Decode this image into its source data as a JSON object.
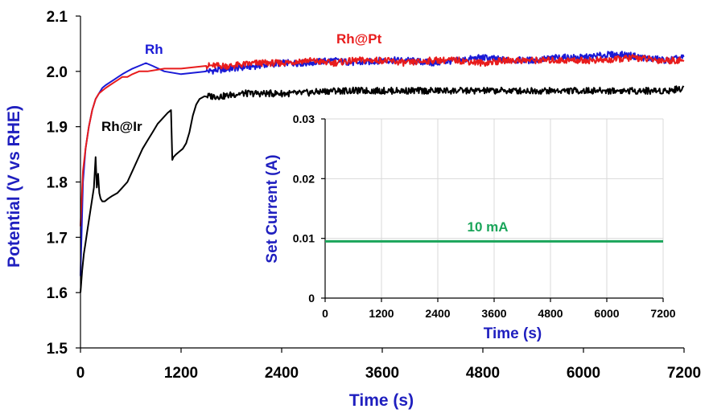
{
  "chart_data": [
    {
      "type": "line",
      "title": "",
      "xlabel": "Time (s)",
      "ylabel": "Potential (V vs RHE)",
      "xlim": [
        0,
        7200
      ],
      "ylim": [
        1.5,
        2.1
      ],
      "xticks": [
        "0",
        "1200",
        "2400",
        "3600",
        "4800",
        "6000",
        "7200"
      ],
      "yticks": [
        "1.5",
        "1.6",
        "1.7",
        "1.8",
        "1.9",
        "2.0",
        "2.1"
      ],
      "grid": false,
      "colors": {
        "axis_labels": "#1f1fbf",
        "Rh": "#1a1ad6",
        "Rh@Pt": "#e81c1c",
        "Rh@Ir": "#000000"
      },
      "series": [
        {
          "name": "Rh",
          "x": [
            0,
            30,
            60,
            100,
            140,
            180,
            220,
            260,
            300,
            350,
            400,
            450,
            500,
            560,
            620,
            700,
            780,
            860,
            1000,
            1200,
            1500,
            1800,
            2100,
            2400,
            2700,
            3000,
            3300,
            3600,
            3900,
            4200,
            4500,
            4800,
            5100,
            5400,
            5700,
            6000,
            6300,
            6500,
            6700,
            7000,
            7200
          ],
          "y": [
            1.63,
            1.8,
            1.86,
            1.9,
            1.93,
            1.95,
            1.96,
            1.97,
            1.975,
            1.98,
            1.985,
            1.99,
            1.995,
            2.0,
            2.005,
            2.01,
            2.015,
            2.01,
            2.0,
            1.995,
            2.0,
            2.005,
            2.01,
            2.015,
            2.015,
            2.02,
            2.015,
            2.02,
            2.02,
            2.015,
            2.02,
            2.025,
            2.02,
            2.02,
            2.025,
            2.025,
            2.03,
            2.03,
            2.025,
            2.02,
            2.025
          ]
        },
        {
          "name": "Rh@Pt",
          "x": [
            0,
            30,
            60,
            100,
            140,
            180,
            220,
            260,
            300,
            350,
            400,
            450,
            500,
            560,
            620,
            700,
            800,
            1000,
            1200,
            1500,
            1800,
            2100,
            2400,
            2700,
            3000,
            3300,
            3600,
            3900,
            4200,
            4500,
            4800,
            5100,
            5400,
            5700,
            6000,
            6300,
            6600,
            6900,
            7200
          ],
          "y": [
            1.72,
            1.82,
            1.86,
            1.9,
            1.93,
            1.95,
            1.96,
            1.965,
            1.97,
            1.975,
            1.98,
            1.985,
            1.99,
            1.99,
            1.995,
            2.0,
            2.0,
            2.005,
            2.005,
            2.01,
            2.01,
            2.015,
            2.015,
            2.02,
            2.015,
            2.02,
            2.02,
            2.015,
            2.02,
            2.02,
            2.015,
            2.02,
            2.02,
            2.02,
            2.02,
            2.02,
            2.025,
            2.02,
            2.02
          ]
        },
        {
          "name": "Rh@Ir",
          "x": [
            0,
            20,
            40,
            60,
            80,
            100,
            120,
            140,
            160,
            180,
            195,
            210,
            225,
            240,
            260,
            290,
            330,
            380,
            440,
            500,
            560,
            620,
            680,
            740,
            800,
            860,
            920,
            980,
            1040,
            1080,
            1095,
            1110,
            1140,
            1180,
            1220,
            1260,
            1300,
            1340,
            1380,
            1420,
            1480,
            1560,
            1700,
            1900,
            2100,
            2300,
            2600,
            3000,
            3400,
            3800,
            4200,
            4600,
            5000,
            5400,
            5800,
            6200,
            6600,
            7000,
            7200
          ],
          "y": [
            1.6,
            1.64,
            1.67,
            1.69,
            1.71,
            1.73,
            1.75,
            1.77,
            1.79,
            1.845,
            1.79,
            1.815,
            1.78,
            1.77,
            1.765,
            1.765,
            1.77,
            1.775,
            1.78,
            1.79,
            1.8,
            1.82,
            1.84,
            1.86,
            1.875,
            1.89,
            1.905,
            1.915,
            1.925,
            1.93,
            1.84,
            1.845,
            1.85,
            1.855,
            1.86,
            1.87,
            1.89,
            1.92,
            1.94,
            1.95,
            1.955,
            1.955,
            1.955,
            1.96,
            1.96,
            1.96,
            1.96,
            1.965,
            1.965,
            1.965,
            1.965,
            1.965,
            1.965,
            1.965,
            1.965,
            1.965,
            1.965,
            1.965,
            1.97
          ]
        }
      ]
    },
    {
      "type": "line",
      "title": "",
      "xlabel": "Time (s)",
      "ylabel": "Set Current (A)",
      "xlim": [
        0,
        7200
      ],
      "ylim": [
        0,
        0.03
      ],
      "xticks": [
        "0",
        "1200",
        "2400",
        "3600",
        "4800",
        "6000",
        "7200"
      ],
      "yticks": [
        "0",
        "0.01",
        "0.02",
        "0.03"
      ],
      "grid": true,
      "annotation": "10 mA",
      "colors": {
        "line": "#1aa55a",
        "grid": "#d9d9d9"
      },
      "series": [
        {
          "x": [
            0,
            7200
          ],
          "y": [
            0.0095,
            0.0095
          ]
        }
      ]
    }
  ]
}
